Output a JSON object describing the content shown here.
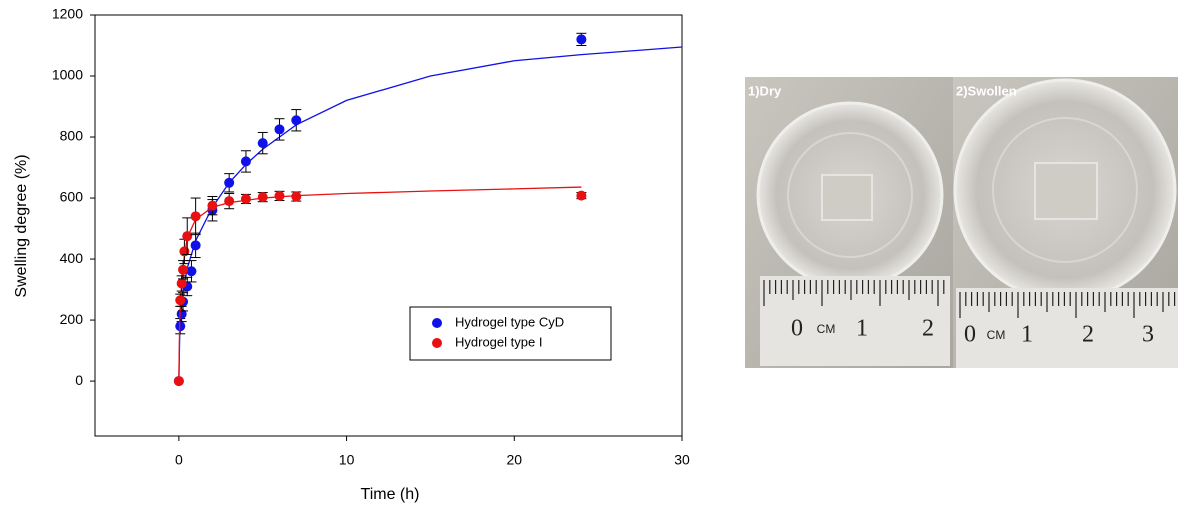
{
  "chart_data": {
    "type": "scatter",
    "xlabel": "Time (h)",
    "ylabel": "Swelling degree (%)",
    "xlim": [
      -5,
      30
    ],
    "xticks": [
      0,
      10,
      20,
      30
    ],
    "ylim": [
      -180,
      1200
    ],
    "yticks": [
      0,
      200,
      400,
      600,
      800,
      1000,
      1200
    ],
    "legend": "lower right",
    "series": [
      {
        "name": "Hydrogel type CyD",
        "color": "#1010e8",
        "x": [
          0,
          0.083,
          0.167,
          0.25,
          0.5,
          0.75,
          1,
          2,
          3,
          4,
          5,
          6,
          7,
          24
        ],
        "values": [
          0,
          180,
          220,
          260,
          310,
          360,
          445,
          560,
          650,
          720,
          780,
          825,
          855,
          1120
        ],
        "errors": [
          0,
          25,
          25,
          30,
          30,
          35,
          40,
          35,
          30,
          35,
          35,
          35,
          35,
          20
        ],
        "fit": {
          "x": [
            0,
            0.05,
            0.2,
            0.5,
            1,
            2,
            3,
            4,
            5,
            7,
            10,
            15,
            20,
            24,
            30
          ],
          "values": [
            0,
            150,
            280,
            370,
            460,
            570,
            650,
            710,
            760,
            840,
            920,
            1000,
            1050,
            1070,
            1095
          ]
        }
      },
      {
        "name": "Hydrogel type I",
        "color": "#e81010",
        "x": [
          0,
          0.083,
          0.167,
          0.25,
          0.33,
          0.5,
          1,
          2,
          3,
          4,
          5,
          6,
          7,
          24
        ],
        "values": [
          0,
          265,
          320,
          365,
          425,
          475,
          540,
          575,
          590,
          597,
          603,
          607,
          605,
          608
        ],
        "errors": [
          0,
          20,
          25,
          30,
          40,
          60,
          60,
          30,
          25,
          15,
          15,
          15,
          15,
          10
        ],
        "fit": {
          "x": [
            0,
            0.05,
            0.2,
            0.5,
            1,
            2,
            3,
            5,
            7,
            10,
            15,
            20,
            24
          ],
          "values": [
            0,
            200,
            360,
            470,
            530,
            570,
            585,
            600,
            608,
            615,
            623,
            630,
            636
          ]
        }
      }
    ]
  },
  "photo": {
    "panels": [
      {
        "label": "1)Dry",
        "ruler_labels": [
          "0",
          "CM",
          "1",
          "2"
        ]
      },
      {
        "label": "2)Swollen",
        "ruler_labels": [
          "0",
          "CM",
          "1",
          "2",
          "3"
        ]
      }
    ]
  }
}
